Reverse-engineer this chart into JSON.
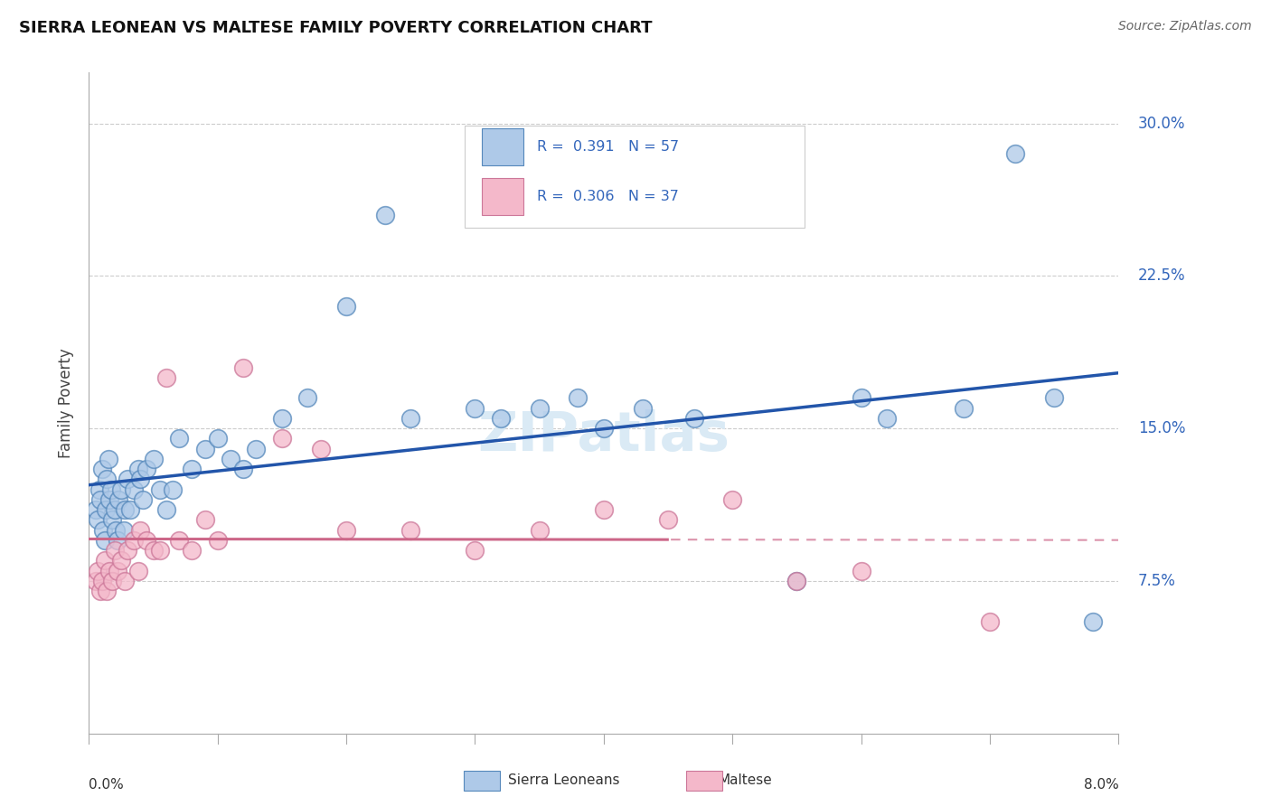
{
  "title": "SIERRA LEONEAN VS MALTESE FAMILY POVERTY CORRELATION CHART",
  "source": "Source: ZipAtlas.com",
  "ylabel": "Family Poverty",
  "yticks": [
    7.5,
    15.0,
    22.5,
    30.0
  ],
  "xrange": [
    0.0,
    8.0
  ],
  "yrange": [
    0.0,
    32.5
  ],
  "blue_fill": "#aec9e8",
  "blue_edge": "#5588bb",
  "blue_line": "#2255aa",
  "pink_fill": "#f4b8ca",
  "pink_edge": "#cc7799",
  "pink_line": "#cc6688",
  "watermark_color": "#daeaf5",
  "legend_text_color": "#3366bb",
  "ytick_color": "#3366bb",
  "sierra_x": [
    0.05,
    0.07,
    0.08,
    0.09,
    0.1,
    0.11,
    0.12,
    0.13,
    0.14,
    0.15,
    0.16,
    0.17,
    0.18,
    0.2,
    0.21,
    0.22,
    0.23,
    0.25,
    0.27,
    0.28,
    0.3,
    0.32,
    0.35,
    0.38,
    0.4,
    0.42,
    0.45,
    0.5,
    0.55,
    0.6,
    0.65,
    0.7,
    0.8,
    0.9,
    1.0,
    1.1,
    1.2,
    1.3,
    1.5,
    1.7,
    2.0,
    2.3,
    2.5,
    3.0,
    3.2,
    3.5,
    3.8,
    4.0,
    4.3,
    4.7,
    5.5,
    6.0,
    6.2,
    6.8,
    7.2,
    7.5,
    7.8
  ],
  "sierra_y": [
    11.0,
    10.5,
    12.0,
    11.5,
    13.0,
    10.0,
    9.5,
    11.0,
    12.5,
    13.5,
    11.5,
    12.0,
    10.5,
    11.0,
    10.0,
    9.5,
    11.5,
    12.0,
    10.0,
    11.0,
    12.5,
    11.0,
    12.0,
    13.0,
    12.5,
    11.5,
    13.0,
    13.5,
    12.0,
    11.0,
    12.0,
    14.5,
    13.0,
    14.0,
    14.5,
    13.5,
    13.0,
    14.0,
    15.5,
    16.5,
    21.0,
    25.5,
    15.5,
    16.0,
    15.5,
    16.0,
    16.5,
    15.0,
    16.0,
    15.5,
    7.5,
    16.5,
    15.5,
    16.0,
    28.5,
    16.5,
    5.5
  ],
  "maltese_x": [
    0.05,
    0.07,
    0.09,
    0.1,
    0.12,
    0.14,
    0.16,
    0.18,
    0.2,
    0.22,
    0.25,
    0.28,
    0.3,
    0.35,
    0.38,
    0.4,
    0.45,
    0.5,
    0.55,
    0.6,
    0.7,
    0.8,
    0.9,
    1.0,
    1.2,
    1.5,
    1.8,
    2.0,
    2.5,
    3.0,
    3.5,
    4.0,
    4.5,
    5.0,
    5.5,
    6.0,
    7.0
  ],
  "maltese_y": [
    7.5,
    8.0,
    7.0,
    7.5,
    8.5,
    7.0,
    8.0,
    7.5,
    9.0,
    8.0,
    8.5,
    7.5,
    9.0,
    9.5,
    8.0,
    10.0,
    9.5,
    9.0,
    9.0,
    17.5,
    9.5,
    9.0,
    10.5,
    9.5,
    18.0,
    14.5,
    14.0,
    10.0,
    10.0,
    9.0,
    10.0,
    11.0,
    10.5,
    11.5,
    7.5,
    8.0,
    5.5
  ],
  "blue_intercept": 9.0,
  "blue_slope": 0.95,
  "pink_intercept": 7.0,
  "pink_slope": 0.7,
  "pink_solid_end": 4.5
}
